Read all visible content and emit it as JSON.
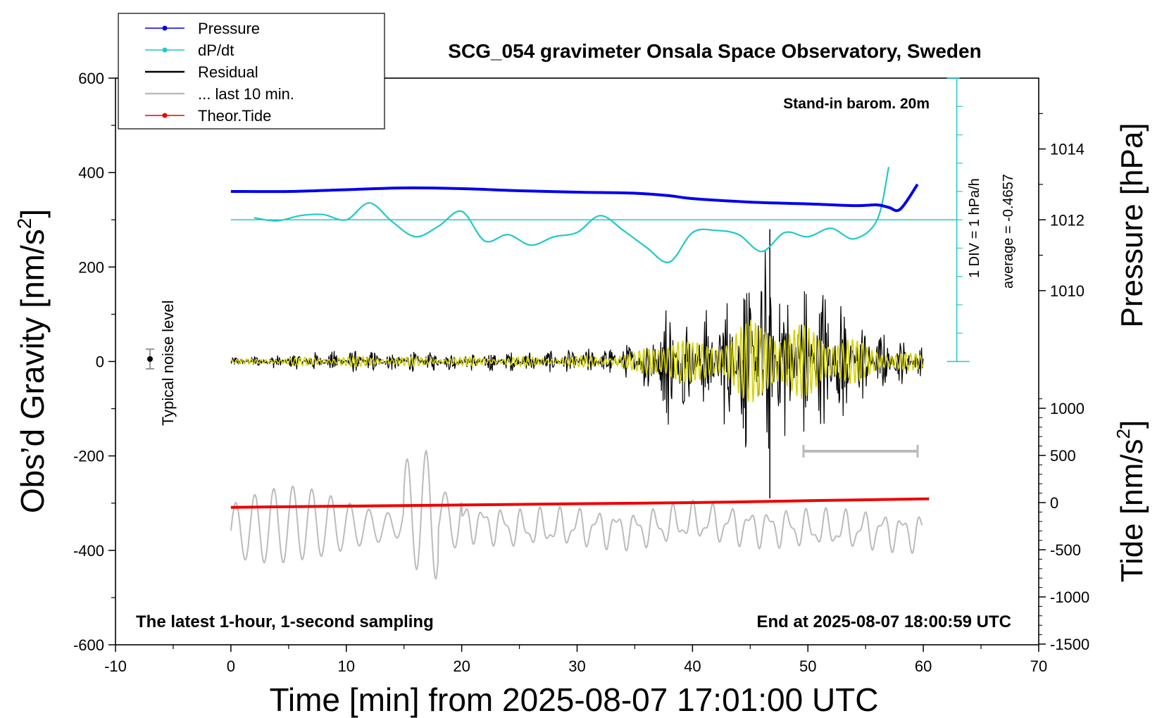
{
  "chart_data": {
    "type": "line",
    "title": "SCG_054 gravimeter Onsala Space Observatory, Sweden",
    "xlabel": "Time [min] from 2025-08-07 17:01:00 UTC",
    "ylabel": "Obs’d Gravity [nm/s",
    "ylabel_sup": "2",
    "ylabel_tail": "]",
    "y2label": "Pressure [hPa]",
    "y3label": "Tide [nm/s",
    "y3label_sup": "2",
    "y3label_tail": "]",
    "xlim": [
      -10,
      70
    ],
    "ylim": [
      -600,
      600
    ],
    "xticks": [
      "-10",
      "0",
      "10",
      "20",
      "30",
      "40",
      "50",
      "60",
      "70"
    ],
    "yticks": [
      "-600",
      "-400",
      "-200",
      "0",
      "200",
      "400",
      "600"
    ],
    "pressure_ticks": [
      "1010",
      "1012",
      "1014"
    ],
    "tide_ticks": [
      "-1500",
      "-1000",
      "-500",
      "0",
      "500",
      "1000"
    ],
    "annotations": {
      "barom": "Stand-in barom. 20m",
      "div": "1 DIV = 1 hPa/h",
      "average": "average = -0.4657",
      "noise": "Typical noise level",
      "latest": "The latest 1-hour, 1-second sampling",
      "end": "End at 2025-08-07 18:00:59 UTC"
    },
    "legend": {
      "placement": "top-left",
      "entries": [
        {
          "label": "Pressure",
          "color": "#0000ee",
          "marker": true
        },
        {
          "label": "dP/dt",
          "color": "#22c8c8",
          "marker": true
        },
        {
          "label": "Residual",
          "color": "#000000",
          "marker": false
        },
        {
          "label": "... last 10 min.",
          "color": "#bbbbbb",
          "marker": false
        },
        {
          "label": "Theor.Tide",
          "color": "#ee0000",
          "marker": true
        }
      ]
    },
    "series": [
      {
        "name": "Pressure",
        "color": "#0000ee",
        "unit": "hPa",
        "x": [
          0,
          5,
          10,
          15,
          20,
          25,
          30,
          35,
          38,
          40,
          45,
          50,
          54,
          56,
          57,
          58,
          59.5
        ],
        "y": [
          1012.8,
          1012.8,
          1012.85,
          1012.9,
          1012.88,
          1012.82,
          1012.78,
          1012.75,
          1012.68,
          1012.6,
          1012.5,
          1012.45,
          1012.4,
          1012.42,
          1012.35,
          1012.3,
          1013.0
        ]
      },
      {
        "name": "dP/dt",
        "color": "#22c8c8",
        "unit": "hPa/h",
        "x": [
          2,
          4,
          6,
          8,
          10,
          12,
          14,
          16,
          18,
          20,
          22,
          24,
          26,
          28,
          30,
          32,
          34,
          36,
          38,
          40,
          42,
          44,
          46,
          48,
          50,
          52,
          54,
          56,
          57
        ],
        "y": [
          0.1,
          -0.05,
          0.2,
          0.25,
          0.0,
          0.8,
          -0.1,
          -0.8,
          -0.3,
          0.4,
          -1.0,
          -0.7,
          -1.2,
          -0.8,
          -0.6,
          0.2,
          -0.5,
          -1.3,
          -2.0,
          -0.6,
          -0.5,
          -0.7,
          -1.5,
          -0.6,
          -0.8,
          -0.4,
          -0.9,
          0.0,
          2.5
        ]
      },
      {
        "name": "Residual",
        "color": "#000000",
        "unit": "nm/s2",
        "x": [
          0,
          10,
          20,
          30,
          35,
          38,
          40,
          44,
          46,
          46.7,
          48,
          52,
          55,
          60
        ],
        "y": [
          10,
          25,
          20,
          25,
          40,
          150,
          90,
          170,
          230,
          280,
          180,
          170,
          80,
          30
        ]
      },
      {
        "name": "... last 10 min.",
        "color": "#bbbbbb",
        "unit": "nm/s2",
        "x": [
          0,
          6,
          10,
          14,
          16,
          17.5,
          20,
          25,
          30,
          35,
          40,
          45,
          50,
          55,
          60
        ],
        "y": [
          -355,
          -300,
          -320,
          -330,
          -210,
          -235,
          -290,
          -340,
          -330,
          -350,
          -290,
          -330,
          -340,
          -350,
          -370
        ]
      },
      {
        "name": "Theor.Tide",
        "color": "#ee0000",
        "unit": "nm/s2",
        "x": [
          0,
          10,
          20,
          30,
          40,
          50,
          60.5
        ],
        "y": [
          -50,
          -37,
          -25,
          -12,
          0,
          20,
          40
        ]
      }
    ]
  }
}
